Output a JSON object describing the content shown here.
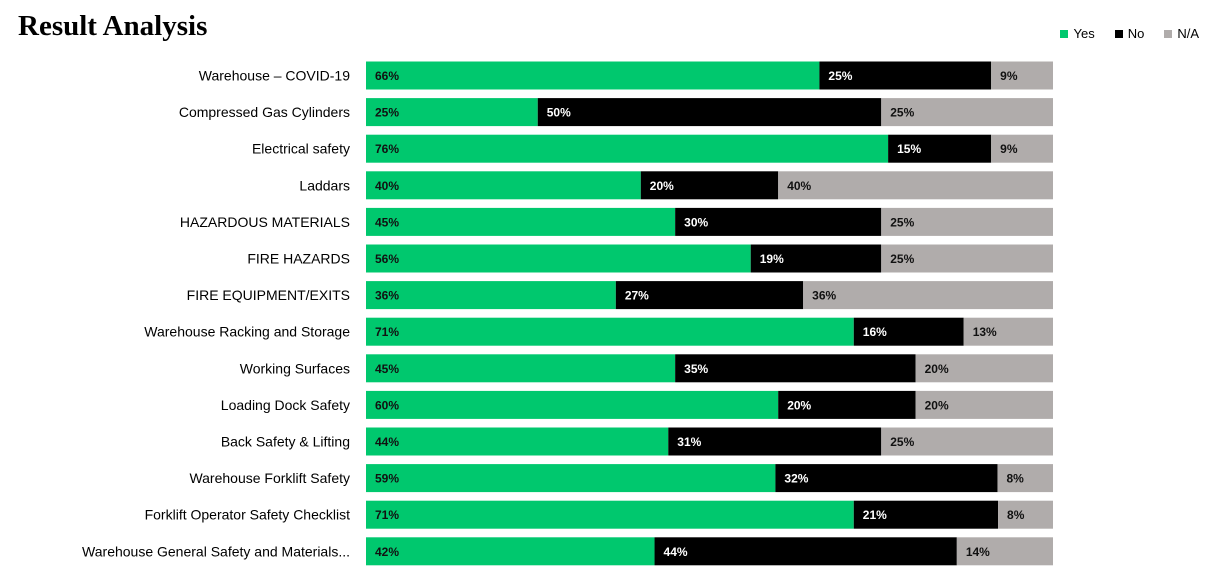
{
  "chart_data": {
    "type": "bar",
    "orientation": "horizontal",
    "stacking": "percent",
    "title": "Result Analysis",
    "legend_position": "top-right",
    "grid": false,
    "colors": {
      "Yes": "#00c86e",
      "No": "#000000",
      "N/A": "#b0acab"
    },
    "categories": [
      "Warehouse – COVID-19",
      "Compressed Gas Cylinders",
      "Electrical safety",
      "Laddars",
      "HAZARDOUS MATERIALS",
      "FIRE HAZARDS",
      "FIRE EQUIPMENT/EXITS",
      "Warehouse Racking and Storage",
      "Working Surfaces",
      "Loading Dock Safety",
      "Back Safety & Lifting",
      "Warehouse Forklift Safety",
      "Forklift Operator Safety Checklist",
      "Warehouse General Safety and Materials..."
    ],
    "series": [
      {
        "name": "Yes",
        "values": [
          66,
          25,
          76,
          40,
          45,
          56,
          36,
          71,
          45,
          60,
          44,
          59,
          71,
          42
        ]
      },
      {
        "name": "No",
        "values": [
          25,
          50,
          15,
          20,
          30,
          19,
          27,
          16,
          35,
          20,
          31,
          32,
          21,
          44
        ]
      },
      {
        "name": "N/A",
        "values": [
          9,
          25,
          9,
          40,
          25,
          25,
          36,
          13,
          20,
          20,
          25,
          8,
          8,
          14
        ]
      }
    ],
    "value_suffix": "%"
  }
}
